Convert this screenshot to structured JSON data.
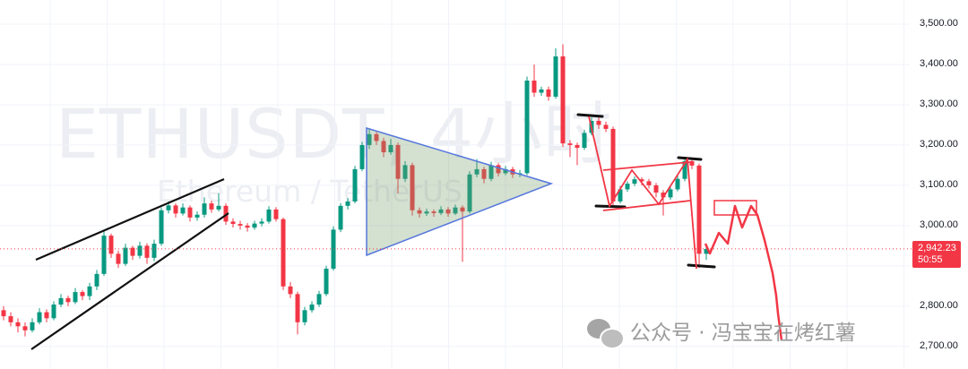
{
  "watermark": {
    "symbol": "ETHUSDT, 4小时",
    "description": "Ethereum / TetherUS"
  },
  "footer_watermark": {
    "icon": "wechat-icon",
    "text": "公众号 · 冯宝宝在烤红薯"
  },
  "price_tag": {
    "price": "2,942.23",
    "countdown": "50:55",
    "color": "#f23645"
  },
  "chart_data": {
    "type": "candlestick",
    "symbol": "ETHUSDT",
    "timeframe": "4小时",
    "colors": {
      "up": "#089981",
      "down": "#f23645"
    },
    "ylim": [
      2644,
      3560
    ],
    "y_ticks": [
      {
        "value": 3500,
        "label": "3,500.00"
      },
      {
        "value": 3400,
        "label": "3,400.00"
      },
      {
        "value": 3300,
        "label": "3,300.00"
      },
      {
        "value": 3200,
        "label": "3,200.00"
      },
      {
        "value": 3100,
        "label": "3,100.00"
      },
      {
        "value": 3000,
        "label": "3,000.00"
      },
      {
        "value": 2800,
        "label": "2,800.00"
      },
      {
        "value": 2700,
        "label": "2,700.00"
      }
    ],
    "last_price": 2942.23,
    "grid": true,
    "candles_ohlc": [
      [
        2790,
        2800,
        2765,
        2775
      ],
      [
        2775,
        2785,
        2750,
        2760
      ],
      [
        2760,
        2770,
        2735,
        2750
      ],
      [
        2750,
        2760,
        2725,
        2740
      ],
      [
        2740,
        2770,
        2735,
        2760
      ],
      [
        2760,
        2795,
        2755,
        2785
      ],
      [
        2785,
        2792,
        2760,
        2770
      ],
      [
        2770,
        2812,
        2765,
        2804
      ],
      [
        2804,
        2830,
        2798,
        2820
      ],
      [
        2820,
        2826,
        2800,
        2810
      ],
      [
        2810,
        2845,
        2805,
        2835
      ],
      [
        2835,
        2840,
        2815,
        2825
      ],
      [
        2825,
        2858,
        2815,
        2849
      ],
      [
        2849,
        2890,
        2840,
        2880
      ],
      [
        2880,
        2990,
        2875,
        2975
      ],
      [
        2975,
        2980,
        2920,
        2930
      ],
      [
        2930,
        2938,
        2895,
        2905
      ],
      [
        2905,
        2955,
        2900,
        2945
      ],
      [
        2945,
        2950,
        2915,
        2925
      ],
      [
        2925,
        2960,
        2918,
        2950
      ],
      [
        2950,
        2956,
        2905,
        2920
      ],
      [
        2920,
        2965,
        2912,
        2955
      ],
      [
        2955,
        3045,
        2950,
        3038
      ],
      [
        3038,
        3060,
        3030,
        3050
      ],
      [
        3050,
        3055,
        3020,
        3030
      ],
      [
        3030,
        3055,
        3025,
        3045
      ],
      [
        3045,
        3050,
        3010,
        3020
      ],
      [
        3020,
        3035,
        3012,
        3027
      ],
      [
        3027,
        3070,
        3020,
        3055
      ],
      [
        3055,
        3062,
        3032,
        3040
      ],
      [
        3040,
        3080,
        3035,
        3049
      ],
      [
        3049,
        3055,
        3002,
        3010
      ],
      [
        3010,
        3018,
        2995,
        3004
      ],
      [
        3004,
        3012,
        2990,
        3000
      ],
      [
        3000,
        3006,
        2985,
        2995
      ],
      [
        2995,
        3012,
        2990,
        3005
      ],
      [
        3005,
        3018,
        2998,
        3010
      ],
      [
        3010,
        3048,
        3005,
        3040
      ],
      [
        3040,
        3046,
        3010,
        3016
      ],
      [
        3016,
        3020,
        2840,
        2849
      ],
      [
        2849,
        2860,
        2820,
        2830
      ],
      [
        2830,
        2836,
        2730,
        2760
      ],
      [
        2760,
        2798,
        2752,
        2790
      ],
      [
        2790,
        2812,
        2784,
        2804
      ],
      [
        2804,
        2838,
        2798,
        2830
      ],
      [
        2830,
        2900,
        2825,
        2893
      ],
      [
        2893,
        2998,
        2888,
        2990
      ],
      [
        2990,
        3056,
        2984,
        3049
      ],
      [
        3049,
        3068,
        3040,
        3060
      ],
      [
        3060,
        3148,
        3055,
        3140
      ],
      [
        3140,
        3208,
        3135,
        3200
      ],
      [
        3200,
        3240,
        3190,
        3227
      ],
      [
        3227,
        3232,
        3200,
        3210
      ],
      [
        3210,
        3218,
        3170,
        3182
      ],
      [
        3182,
        3215,
        3176,
        3200
      ],
      [
        3200,
        3206,
        3080,
        3116
      ],
      [
        3116,
        3160,
        3108,
        3150
      ],
      [
        3150,
        3156,
        3025,
        3038
      ],
      [
        3038,
        3045,
        3020,
        3030
      ],
      [
        3030,
        3042,
        3024,
        3035
      ],
      [
        3035,
        3040,
        3022,
        3031
      ],
      [
        3031,
        3048,
        3026,
        3040
      ],
      [
        3040,
        3046,
        3022,
        3030
      ],
      [
        3030,
        3052,
        3026,
        3045
      ],
      [
        3045,
        3050,
        2910,
        3035
      ],
      [
        3035,
        3135,
        3030,
        3127
      ],
      [
        3127,
        3165,
        3120,
        3140
      ],
      [
        3140,
        3146,
        3105,
        3116
      ],
      [
        3116,
        3158,
        3110,
        3150
      ],
      [
        3150,
        3155,
        3122,
        3130
      ],
      [
        3130,
        3148,
        3125,
        3140
      ],
      [
        3140,
        3146,
        3118,
        3127
      ],
      [
        3127,
        3138,
        3120,
        3130
      ],
      [
        3130,
        3370,
        3125,
        3360
      ],
      [
        3360,
        3400,
        3320,
        3330
      ],
      [
        3330,
        3345,
        3322,
        3338
      ],
      [
        3338,
        3345,
        3310,
        3320
      ],
      [
        3320,
        3440,
        3315,
        3420
      ],
      [
        3420,
        3450,
        3195,
        3204
      ],
      [
        3204,
        3212,
        3170,
        3200
      ],
      [
        3200,
        3206,
        3150,
        3193
      ],
      [
        3193,
        3238,
        3188,
        3230
      ],
      [
        3230,
        3268,
        3224,
        3260
      ],
      [
        3260,
        3272,
        3240,
        3250
      ],
      [
        3250,
        3258,
        3232,
        3240
      ],
      [
        3240,
        3246,
        3050,
        3060
      ],
      [
        3060,
        3098,
        3055,
        3090
      ],
      [
        3090,
        3110,
        3084,
        3104
      ],
      [
        3104,
        3122,
        3098,
        3115
      ],
      [
        3115,
        3120,
        3100,
        3110
      ],
      [
        3110,
        3116,
        3092,
        3100
      ],
      [
        3100,
        3106,
        3070,
        3082
      ],
      [
        3082,
        3088,
        3025,
        3070
      ],
      [
        3070,
        3098,
        3064,
        3090
      ],
      [
        3090,
        3124,
        3085,
        3116
      ],
      [
        3116,
        3170,
        3110,
        3160
      ],
      [
        3160,
        3166,
        3140,
        3149
      ],
      [
        3149,
        3154,
        2895,
        2930
      ],
      [
        2930,
        2955,
        2915,
        2942
      ]
    ]
  }
}
